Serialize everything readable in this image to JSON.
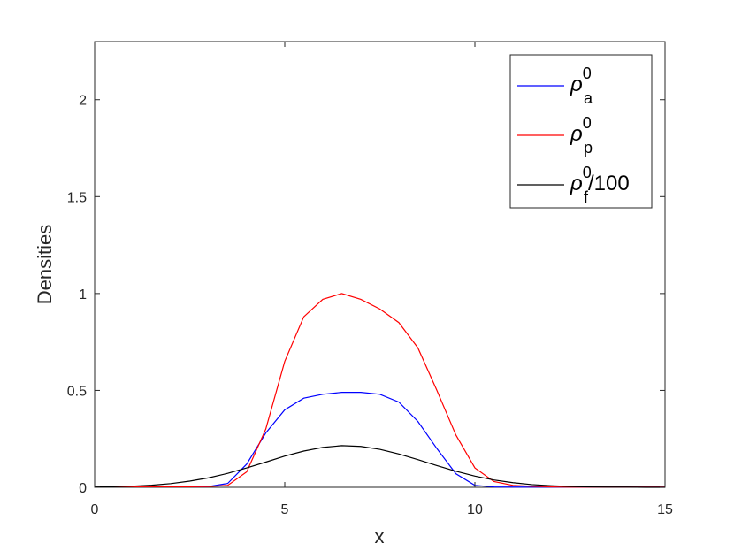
{
  "chart_data": {
    "type": "line",
    "xlabel": "x",
    "ylabel": "Densities",
    "xlim": [
      0,
      15
    ],
    "ylim": [
      0,
      2.3
    ],
    "xticks": [
      0,
      5,
      10,
      15
    ],
    "yticks": [
      0,
      0.5,
      1,
      1.5,
      2
    ],
    "legend": "upper right",
    "x": [
      0,
      0.5,
      1,
      1.5,
      2,
      2.5,
      3,
      3.5,
      4,
      4.5,
      5,
      5.5,
      6,
      6.5,
      7,
      7.5,
      8,
      8.5,
      9,
      9.5,
      10,
      10.5,
      11,
      11.5,
      12,
      12.5,
      13,
      13.5,
      14,
      14.5,
      15
    ],
    "series": [
      {
        "name": {
          "base": "ρ",
          "sub": "a",
          "sup": "0"
        },
        "color": "#0000ff",
        "values": [
          0.003,
          0.003,
          0.003,
          0.003,
          0.003,
          0.003,
          0.004,
          0.02,
          0.12,
          0.28,
          0.4,
          0.46,
          0.48,
          0.49,
          0.49,
          0.48,
          0.44,
          0.34,
          0.2,
          0.07,
          0.01,
          0.002,
          0.001,
          0.001,
          0.001,
          0.001,
          0.001,
          0.001,
          0.001,
          0.001,
          0.001
        ]
      },
      {
        "name": {
          "base": "ρ",
          "sub": "p",
          "sup": "0"
        },
        "color": "#ff0000",
        "values": [
          0.003,
          0.003,
          0.003,
          0.003,
          0.003,
          0.003,
          0.004,
          0.01,
          0.08,
          0.3,
          0.65,
          0.88,
          0.97,
          1.0,
          0.97,
          0.92,
          0.85,
          0.72,
          0.5,
          0.27,
          0.1,
          0.03,
          0.01,
          0.005,
          0.002,
          0.001,
          0.001,
          0.001,
          0.001,
          0.001,
          0.001
        ]
      },
      {
        "name": {
          "base": "ρ",
          "sub": "f",
          "sup": "0",
          "suffix": "/100"
        },
        "color": "#000000",
        "values": [
          0.002,
          0.003,
          0.006,
          0.011,
          0.019,
          0.032,
          0.049,
          0.072,
          0.1,
          0.13,
          0.161,
          0.187,
          0.206,
          0.215,
          0.211,
          0.196,
          0.172,
          0.143,
          0.112,
          0.083,
          0.058,
          0.038,
          0.024,
          0.014,
          0.008,
          0.004,
          0.002,
          0.001,
          0.001,
          0,
          0
        ]
      }
    ]
  }
}
